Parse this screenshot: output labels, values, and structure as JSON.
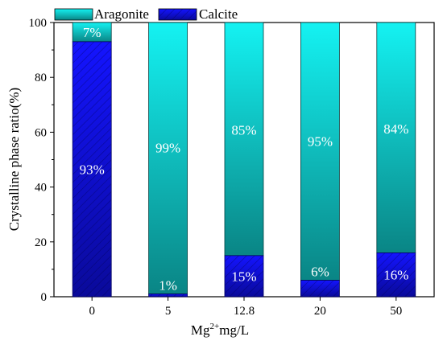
{
  "chart_data": {
    "type": "bar",
    "stacked": true,
    "categories": [
      "0",
      "5",
      "12.8",
      "20",
      "50"
    ],
    "series": [
      {
        "name": "Calcite",
        "values": [
          93,
          1,
          15,
          6,
          16
        ],
        "labels": [
          "93%",
          "1%",
          "15%",
          "6%",
          "16%"
        ],
        "color": "#1010e0"
      },
      {
        "name": "Aragonite",
        "values": [
          7,
          99,
          85,
          95,
          84
        ],
        "labels": [
          "7%",
          "99%",
          "85%",
          "95%",
          "84%"
        ],
        "color": "#11e0e0"
      }
    ],
    "xlabel": {
      "base": "Mg",
      "sup": "2+",
      "tail": "mg/L"
    },
    "ylabel": "Crystalline phase ratio(%)",
    "ylim": [
      0,
      100
    ],
    "yticks": [
      "0",
      "20",
      "40",
      "60",
      "80",
      "100"
    ],
    "grid": false,
    "legend": "top"
  }
}
